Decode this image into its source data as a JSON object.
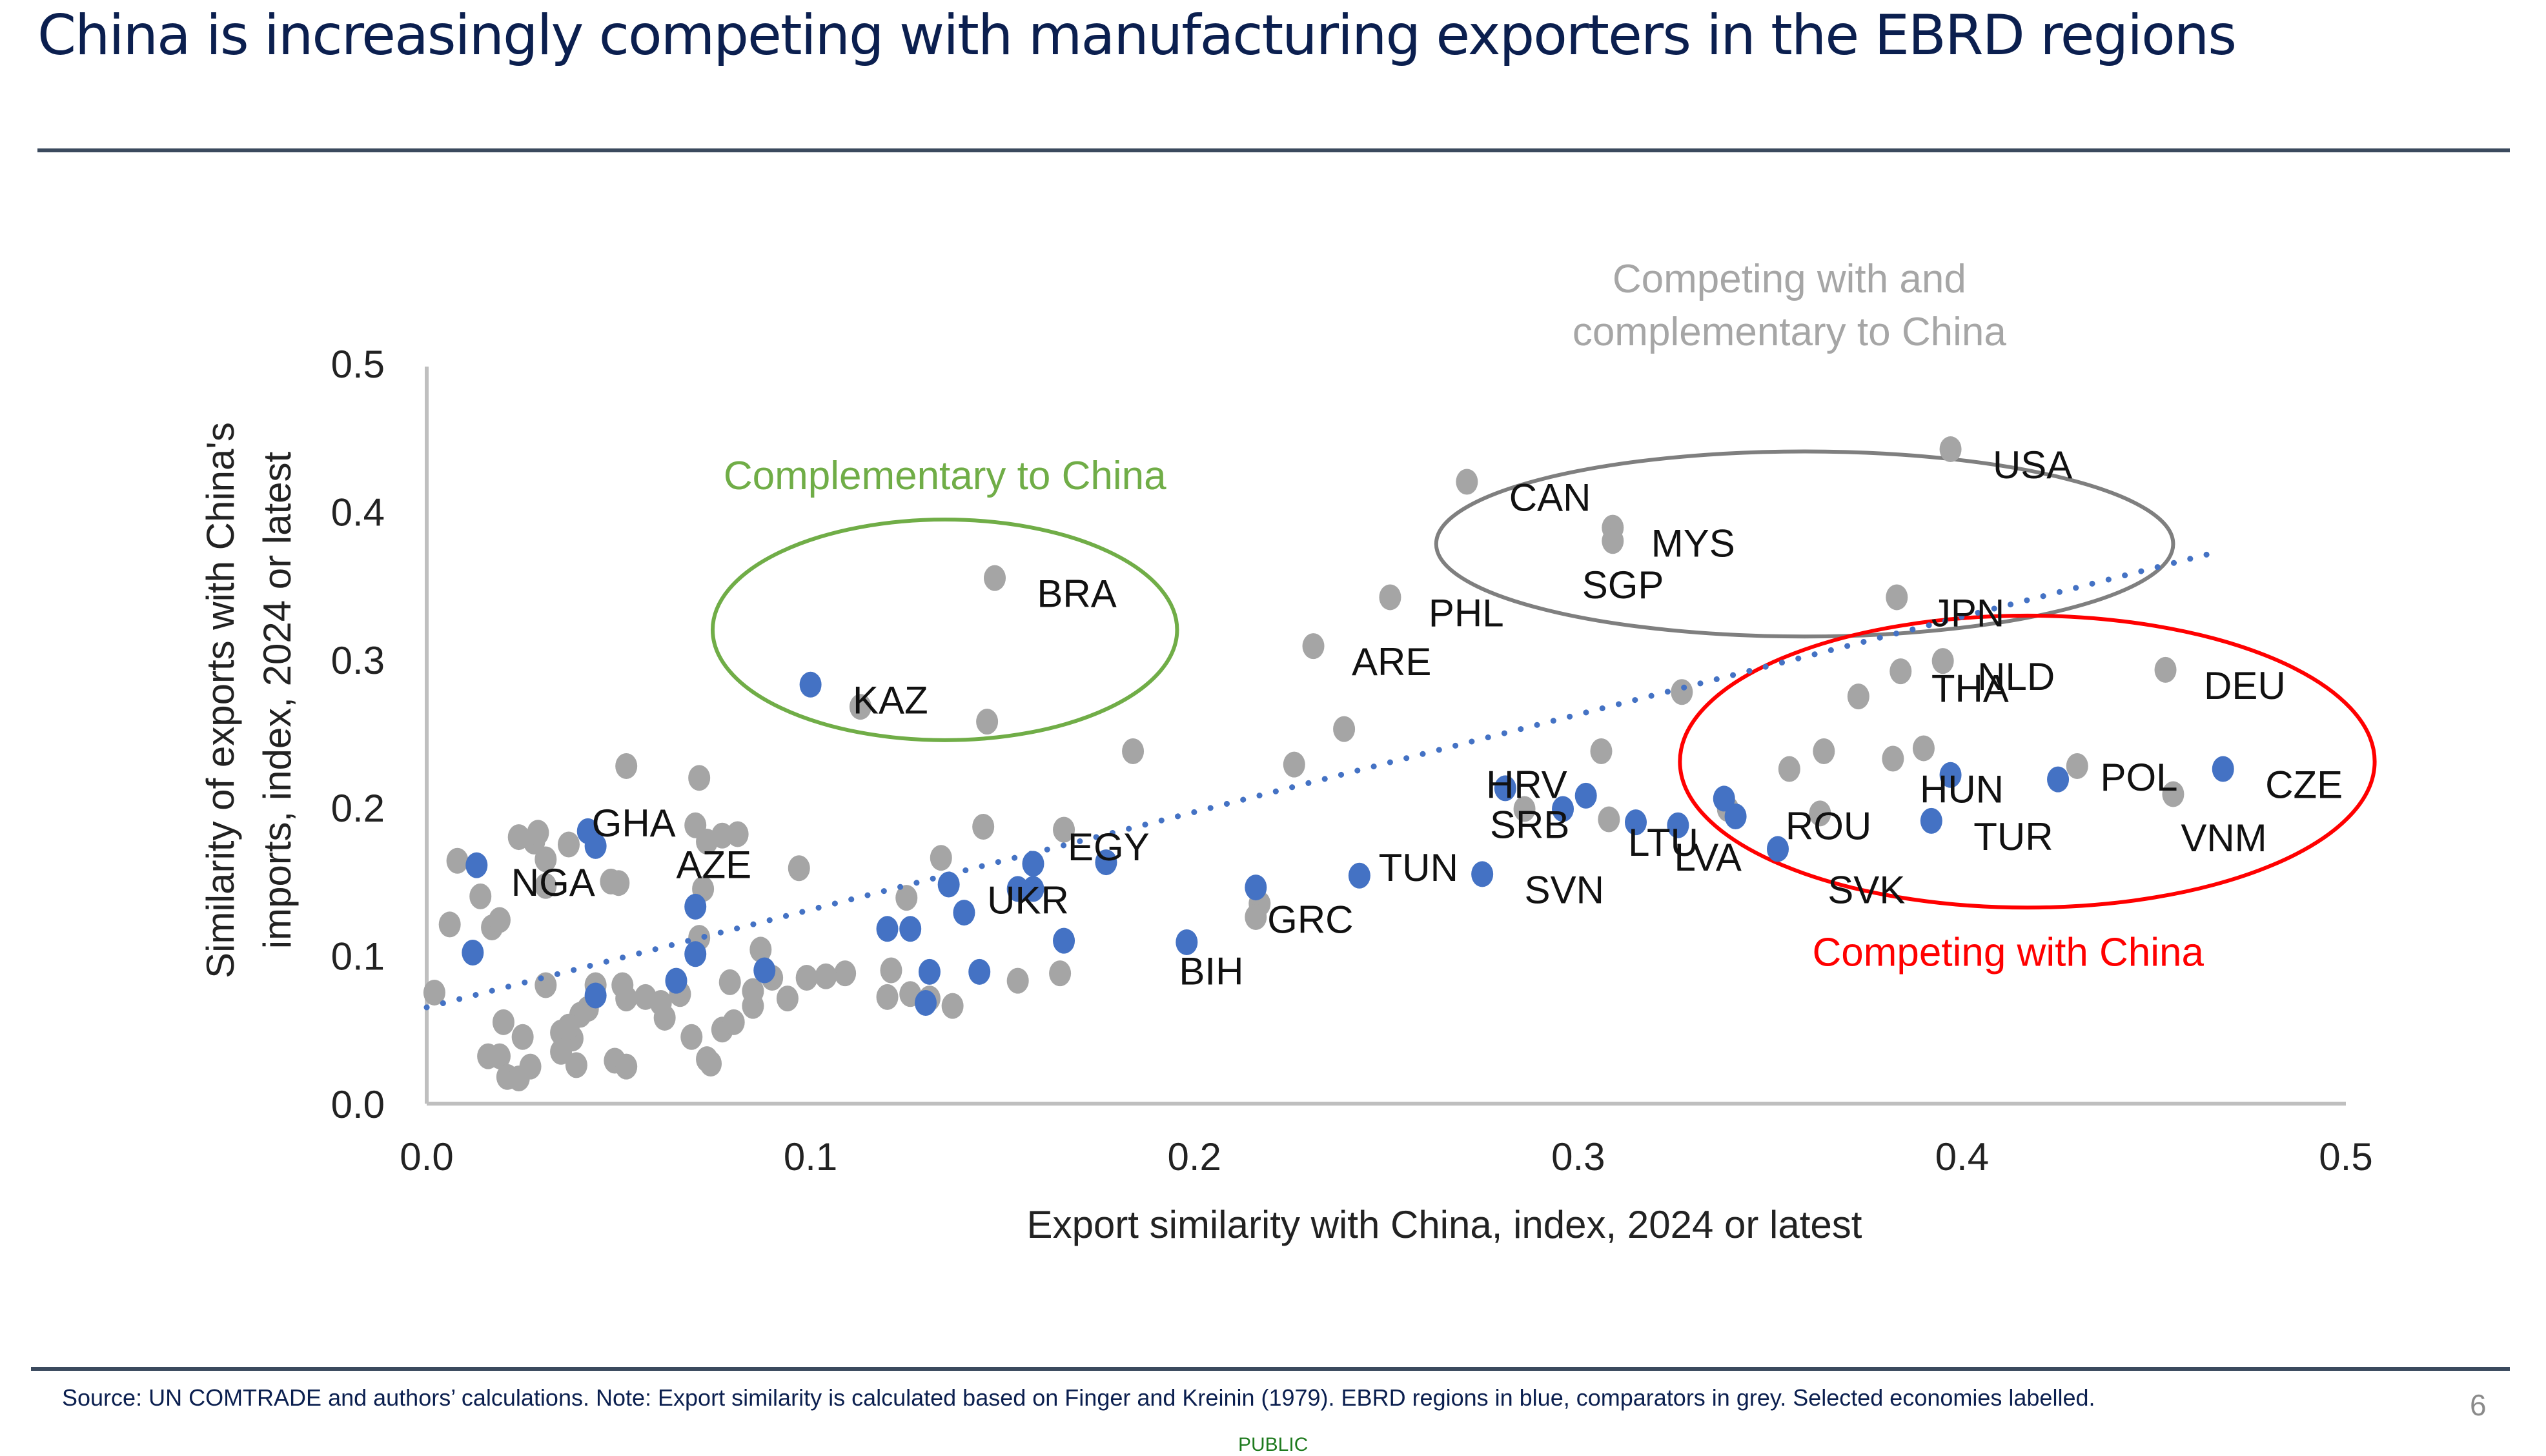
{
  "slide": {
    "title": "China is increasingly competing with manufacturing exporters in the EBRD regions",
    "footer_note": "Source: UN COMTRADE and authors’ calculations. Note: Export similarity is calculated based on Finger and Kreinin (1979). EBRD regions in blue, comparators in grey. Selected economies labelled.",
    "page_number": "6",
    "classification": "PUBLIC"
  },
  "colors": {
    "title": "#0b1f4f",
    "ebrd": "#4472c4",
    "comparator": "#a5a5a5",
    "trendline": "#4472c4",
    "complementary": "#70ad47",
    "both": "#7f7f7f",
    "competing": "#ff0000",
    "axis": "#bfbfbf"
  },
  "chart_data": {
    "type": "scatter",
    "title": "",
    "xlabel": "Export similarity with China, index, 2024 or latest",
    "ylabel_lines": [
      "Similarity of exports with China's",
      "imports, index, 2024 or latest"
    ],
    "xlim": [
      0,
      0.5
    ],
    "ylim": [
      0,
      0.5
    ],
    "xticks": [
      "0.0",
      "0.1",
      "0.2",
      "0.3",
      "0.4",
      "0.5"
    ],
    "yticks": [
      "0.0",
      "0.1",
      "0.2",
      "0.3",
      "0.4",
      "0.5"
    ],
    "grid": false,
    "legend": "none (colour explained in note)",
    "trendline": {
      "style": "dotted",
      "x": [
        0.0,
        0.467
      ],
      "y": [
        0.065,
        0.373
      ]
    },
    "annotations": [
      {
        "text": [
          "Complementary to China"
        ],
        "color_key": "complementary",
        "ellipse": {
          "cx": 0.135,
          "cy": 0.32,
          "rx": 0.0605,
          "ry": 0.0745
        },
        "text_pos": [
          0.135,
          0.415
        ]
      },
      {
        "text": [
          "Competing with and",
          "complementary to China"
        ],
        "color_key": "both",
        "ellipse": {
          "cx": 0.359,
          "cy": 0.378,
          "rx": 0.096,
          "ry": 0.0625
        },
        "text_pos": [
          0.355,
          0.548
        ]
      },
      {
        "text": [
          "Competing with China"
        ],
        "color_key": "competing",
        "ellipse": {
          "cx": 0.417,
          "cy": 0.231,
          "rx": 0.0905,
          "ry": 0.0986
        },
        "text_pos": [
          0.412,
          0.093
        ]
      }
    ],
    "series": [
      {
        "name": "EBRD regions",
        "color_key": "ebrd",
        "points": [
          {
            "x": 0.1,
            "y": 0.283,
            "label": "KAZ",
            "lx": 0.111,
            "ly": 0.273
          },
          {
            "x": 0.468,
            "y": 0.226,
            "label": "CZE",
            "lx": 0.479,
            "ly": 0.216
          },
          {
            "x": 0.425,
            "y": 0.219
          },
          {
            "x": 0.397,
            "y": 0.222,
            "label": "HUN",
            "lx": 0.389,
            "ly": 0.213
          },
          {
            "x": 0.392,
            "y": 0.191,
            "label": "TUR",
            "lx": 0.403,
            "ly": 0.181
          },
          {
            "x": 0.352,
            "y": 0.172,
            "label": "SVK",
            "lx": 0.365,
            "ly": 0.145
          },
          {
            "x": 0.338,
            "y": 0.206
          },
          {
            "x": 0.341,
            "y": 0.194,
            "label": "LVA",
            "lx": 0.325,
            "ly": 0.167
          },
          {
            "x": 0.315,
            "y": 0.19,
            "label": "LTU",
            "lx": 0.313,
            "ly": 0.177
          },
          {
            "x": 0.326,
            "y": 0.188
          },
          {
            "x": 0.302,
            "y": 0.208
          },
          {
            "x": 0.296,
            "y": 0.199,
            "label": "SRB",
            "lx": 0.277,
            "ly": 0.189
          },
          {
            "x": 0.281,
            "y": 0.213,
            "label": "HRV",
            "lx": 0.276,
            "ly": 0.216
          },
          {
            "x": 0.275,
            "y": 0.155,
            "label": "SVN",
            "lx": 0.286,
            "ly": 0.145
          },
          {
            "x": 0.243,
            "y": 0.154,
            "label": "TUN",
            "lx": 0.248,
            "ly": 0.16
          },
          {
            "x": 0.216,
            "y": 0.146
          },
          {
            "x": 0.198,
            "y": 0.109,
            "label": "BIH",
            "lx": 0.196,
            "ly": 0.09
          },
          {
            "x": 0.177,
            "y": 0.163,
            "label": "EGY",
            "lx": 0.167,
            "ly": 0.174
          },
          {
            "x": 0.158,
            "y": 0.162
          },
          {
            "x": 0.154,
            "y": 0.145,
            "label": "UKR",
            "lx": 0.146,
            "ly": 0.138
          },
          {
            "x": 0.14,
            "y": 0.129
          },
          {
            "x": 0.136,
            "y": 0.148
          },
          {
            "x": 0.126,
            "y": 0.118
          },
          {
            "x": 0.12,
            "y": 0.118
          },
          {
            "x": 0.166,
            "y": 0.11
          },
          {
            "x": 0.144,
            "y": 0.089
          },
          {
            "x": 0.131,
            "y": 0.089
          },
          {
            "x": 0.13,
            "y": 0.068
          },
          {
            "x": 0.088,
            "y": 0.09
          },
          {
            "x": 0.07,
            "y": 0.133,
            "label": "AZE",
            "lx": 0.065,
            "ly": 0.162
          },
          {
            "x": 0.065,
            "y": 0.083
          },
          {
            "x": 0.07,
            "y": 0.101
          },
          {
            "x": 0.042,
            "y": 0.184,
            "label": "GHA",
            "lx": 0.043,
            "ly": 0.19
          },
          {
            "x": 0.044,
            "y": 0.174
          },
          {
            "x": 0.044,
            "y": 0.073
          },
          {
            "x": 0.012,
            "y": 0.102
          },
          {
            "x": 0.013,
            "y": 0.161
          },
          {
            "x": 0.158,
            "y": 0.145
          }
        ]
      },
      {
        "name": "Comparators",
        "color_key": "comparator",
        "points": [
          {
            "x": 0.397,
            "y": 0.442,
            "label": "USA",
            "lx": 0.408,
            "ly": 0.432
          },
          {
            "x": 0.271,
            "y": 0.42,
            "label": "CAN",
            "lx": 0.282,
            "ly": 0.41
          },
          {
            "x": 0.309,
            "y": 0.389,
            "label": "MYS",
            "lx": 0.319,
            "ly": 0.379
          },
          {
            "x": 0.309,
            "y": 0.38,
            "label": "SGP",
            "lx": 0.301,
            "ly": 0.351
          },
          {
            "x": 0.251,
            "y": 0.342,
            "label": "PHL",
            "lx": 0.261,
            "ly": 0.332
          },
          {
            "x": 0.231,
            "y": 0.309,
            "label": "ARE",
            "lx": 0.241,
            "ly": 0.299
          },
          {
            "x": 0.383,
            "y": 0.342,
            "label": "JPN",
            "lx": 0.392,
            "ly": 0.332
          },
          {
            "x": 0.395,
            "y": 0.299,
            "label": "NLD",
            "lx": 0.404,
            "ly": 0.289
          },
          {
            "x": 0.384,
            "y": 0.292,
            "label": "THA",
            "lx": 0.392,
            "ly": 0.281
          },
          {
            "x": 0.453,
            "y": 0.293,
            "label": "DEU",
            "lx": 0.463,
            "ly": 0.283
          },
          {
            "x": 0.148,
            "y": 0.355,
            "label": "BRA",
            "lx": 0.159,
            "ly": 0.345
          },
          {
            "x": 0.43,
            "y": 0.228,
            "label": "POL",
            "lx": 0.436,
            "ly": 0.221
          },
          {
            "x": 0.455,
            "y": 0.209,
            "label": "VNM",
            "lx": 0.457,
            "ly": 0.18
          },
          {
            "x": 0.363,
            "y": 0.196,
            "label": "ROU",
            "lx": 0.354,
            "ly": 0.188
          },
          {
            "x": 0.217,
            "y": 0.135,
            "label": "GRC",
            "lx": 0.219,
            "ly": 0.125
          },
          {
            "x": 0.048,
            "y": 0.15,
            "label": "NGA",
            "lx": 0.022,
            "ly": 0.15
          },
          {
            "x": 0.327,
            "y": 0.278
          },
          {
            "x": 0.373,
            "y": 0.275
          },
          {
            "x": 0.306,
            "y": 0.238
          },
          {
            "x": 0.355,
            "y": 0.226
          },
          {
            "x": 0.364,
            "y": 0.238
          },
          {
            "x": 0.382,
            "y": 0.233
          },
          {
            "x": 0.39,
            "y": 0.24
          },
          {
            "x": 0.339,
            "y": 0.199
          },
          {
            "x": 0.308,
            "y": 0.192
          },
          {
            "x": 0.286,
            "y": 0.199
          },
          {
            "x": 0.239,
            "y": 0.253
          },
          {
            "x": 0.226,
            "y": 0.229
          },
          {
            "x": 0.184,
            "y": 0.238
          },
          {
            "x": 0.146,
            "y": 0.258
          },
          {
            "x": 0.113,
            "y": 0.268
          },
          {
            "x": 0.216,
            "y": 0.126
          },
          {
            "x": 0.145,
            "y": 0.187
          },
          {
            "x": 0.166,
            "y": 0.185
          },
          {
            "x": 0.134,
            "y": 0.166
          },
          {
            "x": 0.125,
            "y": 0.139
          },
          {
            "x": 0.097,
            "y": 0.159
          },
          {
            "x": 0.154,
            "y": 0.083
          },
          {
            "x": 0.165,
            "y": 0.088
          },
          {
            "x": 0.137,
            "y": 0.066
          },
          {
            "x": 0.126,
            "y": 0.074
          },
          {
            "x": 0.131,
            "y": 0.071
          },
          {
            "x": 0.12,
            "y": 0.072
          },
          {
            "x": 0.121,
            "y": 0.09
          },
          {
            "x": 0.109,
            "y": 0.088
          },
          {
            "x": 0.104,
            "y": 0.086
          },
          {
            "x": 0.099,
            "y": 0.085
          },
          {
            "x": 0.09,
            "y": 0.085
          },
          {
            "x": 0.087,
            "y": 0.104
          },
          {
            "x": 0.094,
            "y": 0.071
          },
          {
            "x": 0.085,
            "y": 0.066
          },
          {
            "x": 0.077,
            "y": 0.05
          },
          {
            "x": 0.074,
            "y": 0.027
          },
          {
            "x": 0.073,
            "y": 0.03
          },
          {
            "x": 0.08,
            "y": 0.055
          },
          {
            "x": 0.069,
            "y": 0.045
          },
          {
            "x": 0.066,
            "y": 0.074
          },
          {
            "x": 0.061,
            "y": 0.068
          },
          {
            "x": 0.062,
            "y": 0.058
          },
          {
            "x": 0.057,
            "y": 0.072
          },
          {
            "x": 0.051,
            "y": 0.08
          },
          {
            "x": 0.052,
            "y": 0.071
          },
          {
            "x": 0.044,
            "y": 0.08
          },
          {
            "x": 0.042,
            "y": 0.064
          },
          {
            "x": 0.04,
            "y": 0.06
          },
          {
            "x": 0.038,
            "y": 0.044
          },
          {
            "x": 0.037,
            "y": 0.052
          },
          {
            "x": 0.035,
            "y": 0.048
          },
          {
            "x": 0.035,
            "y": 0.035
          },
          {
            "x": 0.049,
            "y": 0.029
          },
          {
            "x": 0.052,
            "y": 0.025
          },
          {
            "x": 0.039,
            "y": 0.026
          },
          {
            "x": 0.031,
            "y": 0.08
          },
          {
            "x": 0.025,
            "y": 0.045
          },
          {
            "x": 0.027,
            "y": 0.025
          },
          {
            "x": 0.02,
            "y": 0.055
          },
          {
            "x": 0.019,
            "y": 0.032
          },
          {
            "x": 0.016,
            "y": 0.032
          },
          {
            "x": 0.021,
            "y": 0.018
          },
          {
            "x": 0.024,
            "y": 0.017
          },
          {
            "x": 0.002,
            "y": 0.075
          },
          {
            "x": 0.006,
            "y": 0.121
          },
          {
            "x": 0.008,
            "y": 0.164
          },
          {
            "x": 0.014,
            "y": 0.14
          },
          {
            "x": 0.017,
            "y": 0.119
          },
          {
            "x": 0.019,
            "y": 0.124
          },
          {
            "x": 0.024,
            "y": 0.18
          },
          {
            "x": 0.028,
            "y": 0.177
          },
          {
            "x": 0.029,
            "y": 0.183
          },
          {
            "x": 0.031,
            "y": 0.147
          },
          {
            "x": 0.031,
            "y": 0.165
          },
          {
            "x": 0.037,
            "y": 0.175
          },
          {
            "x": 0.05,
            "y": 0.149
          },
          {
            "x": 0.052,
            "y": 0.228
          },
          {
            "x": 0.071,
            "y": 0.22
          },
          {
            "x": 0.07,
            "y": 0.188
          },
          {
            "x": 0.073,
            "y": 0.177
          },
          {
            "x": 0.077,
            "y": 0.181
          },
          {
            "x": 0.081,
            "y": 0.182
          },
          {
            "x": 0.072,
            "y": 0.145
          },
          {
            "x": 0.071,
            "y": 0.112
          },
          {
            "x": 0.079,
            "y": 0.082
          },
          {
            "x": 0.085,
            "y": 0.076
          }
        ]
      }
    ]
  }
}
